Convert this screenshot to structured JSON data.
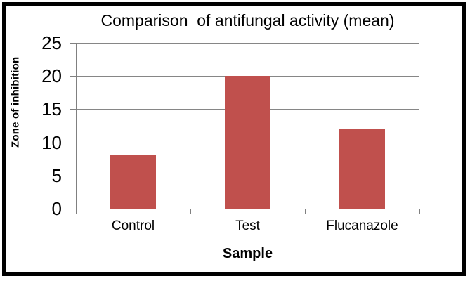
{
  "frame": {
    "border_color": "#000000",
    "background_color": "#ffffff"
  },
  "chart_data": {
    "type": "bar",
    "title": "Comparison  of antifungal activity (mean)",
    "categories": [
      "Control",
      "Test",
      "Flucanazole"
    ],
    "values": [
      8,
      20,
      12
    ],
    "xlabel": "Sample",
    "ylabel": "Zone of inhibition",
    "ylim": [
      0,
      25
    ],
    "yticks": [
      0,
      5,
      10,
      15,
      20,
      25
    ],
    "grid": "horizontal",
    "legend": "none",
    "bar_color": "#C0504D",
    "gridline_color": "#868686",
    "axis_color": "#808080",
    "text_color": "#000000"
  }
}
